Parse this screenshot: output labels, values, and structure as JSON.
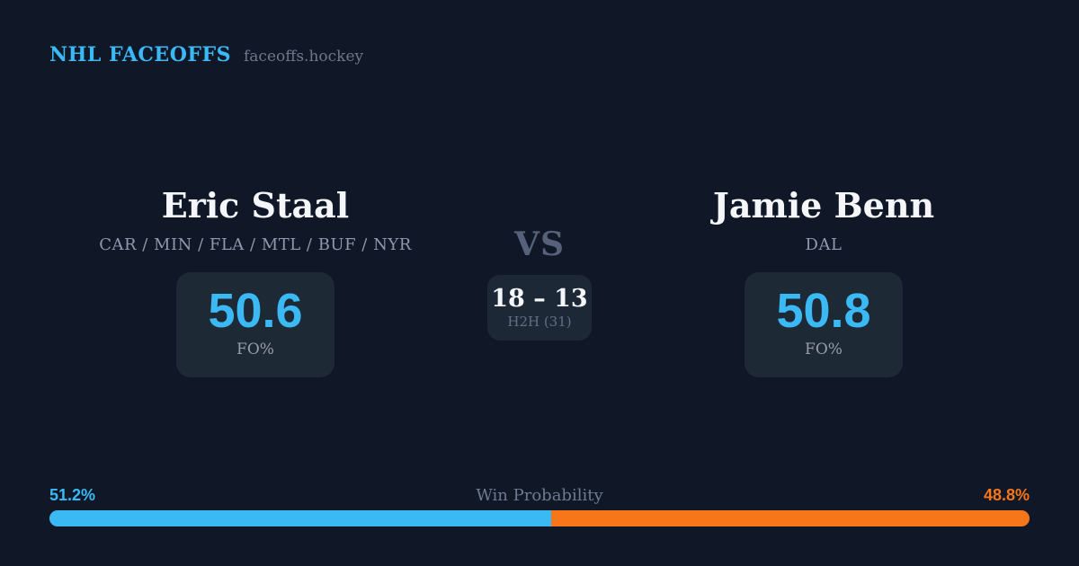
{
  "header": {
    "brand": "NHL FACEOFFS",
    "site": "faceoffs.hockey"
  },
  "matchup": {
    "player_left": {
      "name": "Eric Staal",
      "teams": "CAR / MIN / FLA / MTL / BUF / NYR",
      "fo_pct": "50.6",
      "stat_label": "FO%"
    },
    "vs_label": "VS",
    "h2h": {
      "score": "18 – 13",
      "label": "H2H (31)"
    },
    "player_right": {
      "name": "Jamie Benn",
      "teams": "DAL",
      "fo_pct": "50.8",
      "stat_label": "FO%"
    }
  },
  "win_probability": {
    "title": "Win Probability",
    "left_pct_label": "51.2%",
    "right_pct_label": "48.8%",
    "left_value": 51.2,
    "right_value": 48.8,
    "bar_left_style": "width:51.2%"
  },
  "chart_data": {
    "type": "bar",
    "title": "Win Probability",
    "categories": [
      "Eric Staal",
      "Jamie Benn"
    ],
    "values": [
      51.2,
      48.8
    ],
    "unit": "%",
    "orientation": "horizontal-stacked",
    "series_colors": [
      "#3bb9f5",
      "#f7761a"
    ]
  },
  "colors": {
    "background": "#101828",
    "card_background": "#1e2936",
    "accent_blue": "#3bb9f5",
    "accent_orange": "#f7761a",
    "text_primary": "#f4f6f9",
    "text_muted": "#8f99ab"
  }
}
